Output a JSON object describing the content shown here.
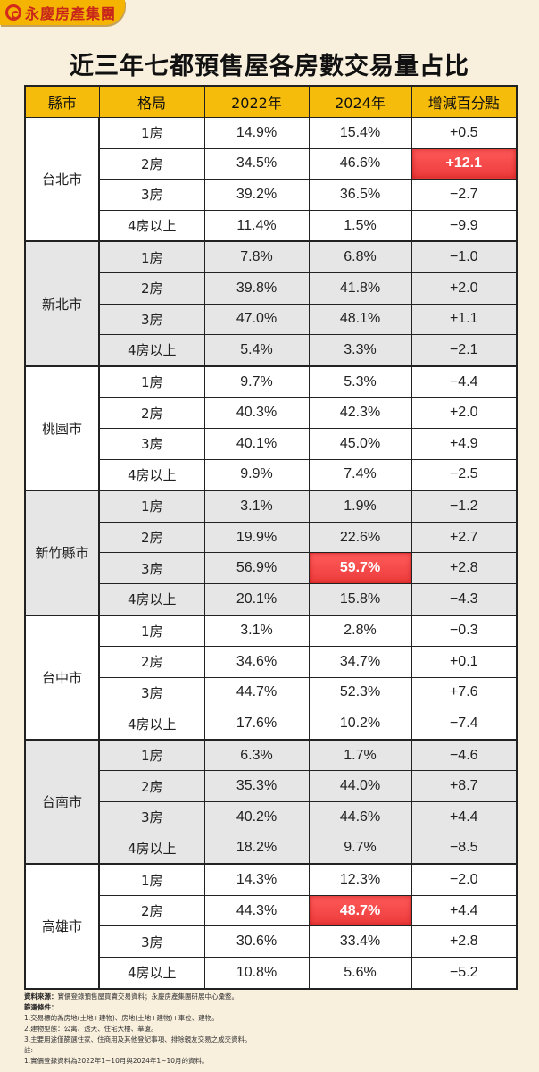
{
  "brand": {
    "name": "永慶房產集團",
    "logo_icon": "yungching-logo-icon",
    "color": "#c8261b",
    "tab_color": "#f4b400"
  },
  "title": "近三年七都預售屋各房數交易量占比",
  "colors": {
    "header_bg": "#f6bc0c",
    "highlight": "#f24848",
    "page_bg": "#f8efdd",
    "row_alt": "#e6e6e6"
  },
  "table": {
    "headers": [
      "縣市",
      "格局",
      "2022年",
      "2024年",
      "增減百分點"
    ],
    "groups": [
      {
        "city": "台北市",
        "rows": [
          {
            "layout": "1房",
            "y2022": "14.9%",
            "y2024": "15.4%",
            "change": "+0.5"
          },
          {
            "layout": "2房",
            "y2022": "34.5%",
            "y2024": "46.6%",
            "change": "+12.1",
            "highlight": "change"
          },
          {
            "layout": "3房",
            "y2022": "39.2%",
            "y2024": "36.5%",
            "change": "−2.7"
          },
          {
            "layout": "4房以上",
            "y2022": "11.4%",
            "y2024": "1.5%",
            "change": "−9.9"
          }
        ]
      },
      {
        "city": "新北市",
        "rows": [
          {
            "layout": "1房",
            "y2022": "7.8%",
            "y2024": "6.8%",
            "change": "−1.0"
          },
          {
            "layout": "2房",
            "y2022": "39.8%",
            "y2024": "41.8%",
            "change": "+2.0"
          },
          {
            "layout": "3房",
            "y2022": "47.0%",
            "y2024": "48.1%",
            "change": "+1.1"
          },
          {
            "layout": "4房以上",
            "y2022": "5.4%",
            "y2024": "3.3%",
            "change": "−2.1"
          }
        ]
      },
      {
        "city": "桃園市",
        "rows": [
          {
            "layout": "1房",
            "y2022": "9.7%",
            "y2024": "5.3%",
            "change": "−4.4"
          },
          {
            "layout": "2房",
            "y2022": "40.3%",
            "y2024": "42.3%",
            "change": "+2.0"
          },
          {
            "layout": "3房",
            "y2022": "40.1%",
            "y2024": "45.0%",
            "change": "+4.9"
          },
          {
            "layout": "4房以上",
            "y2022": "9.9%",
            "y2024": "7.4%",
            "change": "−2.5"
          }
        ]
      },
      {
        "city": "新竹縣市",
        "rows": [
          {
            "layout": "1房",
            "y2022": "3.1%",
            "y2024": "1.9%",
            "change": "−1.2"
          },
          {
            "layout": "2房",
            "y2022": "19.9%",
            "y2024": "22.6%",
            "change": "+2.7"
          },
          {
            "layout": "3房",
            "y2022": "56.9%",
            "y2024": "59.7%",
            "change": "+2.8",
            "highlight": "y2024"
          },
          {
            "layout": "4房以上",
            "y2022": "20.1%",
            "y2024": "15.8%",
            "change": "−4.3"
          }
        ]
      },
      {
        "city": "台中市",
        "rows": [
          {
            "layout": "1房",
            "y2022": "3.1%",
            "y2024": "2.8%",
            "change": "−0.3"
          },
          {
            "layout": "2房",
            "y2022": "34.6%",
            "y2024": "34.7%",
            "change": "+0.1"
          },
          {
            "layout": "3房",
            "y2022": "44.7%",
            "y2024": "52.3%",
            "change": "+7.6"
          },
          {
            "layout": "4房以上",
            "y2022": "17.6%",
            "y2024": "10.2%",
            "change": "−7.4"
          }
        ]
      },
      {
        "city": "台南市",
        "rows": [
          {
            "layout": "1房",
            "y2022": "6.3%",
            "y2024": "1.7%",
            "change": "−4.6"
          },
          {
            "layout": "2房",
            "y2022": "35.3%",
            "y2024": "44.0%",
            "change": "+8.7"
          },
          {
            "layout": "3房",
            "y2022": "40.2%",
            "y2024": "44.6%",
            "change": "+4.4"
          },
          {
            "layout": "4房以上",
            "y2022": "18.2%",
            "y2024": "9.7%",
            "change": "−8.5"
          }
        ]
      },
      {
        "city": "高雄市",
        "rows": [
          {
            "layout": "1房",
            "y2022": "14.3%",
            "y2024": "12.3%",
            "change": "−2.0"
          },
          {
            "layout": "2房",
            "y2022": "44.3%",
            "y2024": "48.7%",
            "change": "+4.4",
            "highlight": "y2024"
          },
          {
            "layout": "3房",
            "y2022": "30.6%",
            "y2024": "33.4%",
            "change": "+2.8"
          },
          {
            "layout": "4房以上",
            "y2022": "10.8%",
            "y2024": "5.6%",
            "change": "−5.2"
          }
        ]
      }
    ]
  },
  "notes": {
    "source_label": "資料來源：",
    "source_text": "實價登錄預售屋買賣交易資料；永慶房產集團研展中心彙整。",
    "filter_label": "篩選條件：",
    "filters": [
      "1.交易標的為房地(土地+建物)、房地(土地+建物)+車位、建物。",
      "2.建物型態：公寓、透天、住宅大樓、華廈。",
      "3.主要用途僅篩選住家、住商用及其他登記事項、排除親友交易之成交資料。"
    ],
    "remark_label": "註:",
    "remarks": [
      "1.實價登錄資料為2022年1~10月與2024年1~10月的資料。"
    ]
  },
  "chart_data": {
    "type": "table",
    "title": "近三年七都預售屋各房數交易量占比",
    "columns": [
      "縣市",
      "格局",
      "2022年",
      "2024年",
      "增減百分點"
    ],
    "categories": [
      "台北市",
      "新北市",
      "桃園市",
      "新竹縣市",
      "台中市",
      "台南市",
      "高雄市"
    ],
    "layouts": [
      "1房",
      "2房",
      "3房",
      "4房以上"
    ],
    "series": [
      {
        "name": "2022年",
        "values": {
          "台北市": [
            14.9,
            34.5,
            39.2,
            11.4
          ],
          "新北市": [
            7.8,
            39.8,
            47.0,
            5.4
          ],
          "桃園市": [
            9.7,
            40.3,
            40.1,
            9.9
          ],
          "新竹縣市": [
            3.1,
            19.9,
            56.9,
            20.1
          ],
          "台中市": [
            3.1,
            34.6,
            44.7,
            17.6
          ],
          "台南市": [
            6.3,
            35.3,
            40.2,
            18.2
          ],
          "高雄市": [
            14.3,
            44.3,
            30.6,
            10.8
          ]
        }
      },
      {
        "name": "2024年",
        "values": {
          "台北市": [
            15.4,
            46.6,
            36.5,
            1.5
          ],
          "新北市": [
            6.8,
            41.8,
            48.1,
            3.3
          ],
          "桃園市": [
            5.3,
            42.3,
            45.0,
            7.4
          ],
          "新竹縣市": [
            1.9,
            22.6,
            59.7,
            15.8
          ],
          "台中市": [
            2.8,
            34.7,
            52.3,
            10.2
          ],
          "台南市": [
            1.7,
            44.0,
            44.6,
            9.7
          ],
          "高雄市": [
            12.3,
            48.7,
            33.4,
            5.6
          ]
        }
      },
      {
        "name": "增減百分點",
        "values": {
          "台北市": [
            0.5,
            12.1,
            -2.7,
            -9.9
          ],
          "新北市": [
            -1.0,
            2.0,
            1.1,
            -2.1
          ],
          "桃園市": [
            -4.4,
            2.0,
            4.9,
            -2.5
          ],
          "新竹縣市": [
            -1.2,
            2.7,
            2.8,
            -4.3
          ],
          "台中市": [
            -0.3,
            0.1,
            7.6,
            -7.4
          ],
          "台南市": [
            -4.6,
            8.7,
            4.4,
            -8.5
          ],
          "高雄市": [
            -2.0,
            4.4,
            2.8,
            -5.2
          ]
        }
      }
    ],
    "highlights": [
      {
        "city": "台北市",
        "layout": "2房",
        "column": "增減百分點",
        "value": "+12.1"
      },
      {
        "city": "新竹縣市",
        "layout": "3房",
        "column": "2024年",
        "value": "59.7%"
      },
      {
        "city": "高雄市",
        "layout": "2房",
        "column": "2024年",
        "value": "48.7%"
      }
    ]
  }
}
